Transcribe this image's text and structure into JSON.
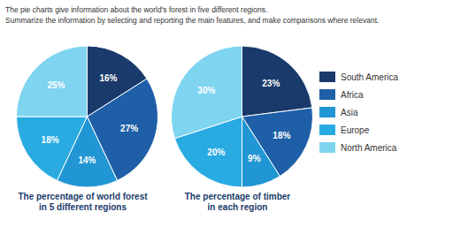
{
  "title": "The pie charts give information about the world's forest in five different regions.",
  "subtitle": "Summarize the information by selecting and reporting the main features, and make comparisons where relevant.",
  "chart_data": [
    {
      "type": "pie",
      "title": "The percentage of world forest\nin 5 different regions",
      "categories": [
        "South America",
        "Africa",
        "Asia",
        "Europe",
        "North America"
      ],
      "values": [
        16,
        27,
        14,
        18,
        25
      ],
      "value_labels": [
        "16%",
        "27%",
        "14%",
        "18%",
        "25%"
      ],
      "colors": [
        "#1a3a6b",
        "#1e5fa8",
        "#2196d4",
        "#29abe2",
        "#7fd4f0"
      ],
      "data_labels": true
    },
    {
      "type": "pie",
      "title": "The percentage of timber\nin each region",
      "categories": [
        "South America",
        "Africa",
        "Asia",
        "Europe",
        "North America"
      ],
      "values": [
        23,
        18,
        9,
        20,
        30
      ],
      "value_labels": [
        "23%",
        "18%",
        "9%",
        "20%",
        "30%"
      ],
      "colors": [
        "#1a3a6b",
        "#1e5fa8",
        "#2196d4",
        "#29abe2",
        "#7fd4f0"
      ],
      "data_labels": true,
      "legend": "right"
    }
  ]
}
